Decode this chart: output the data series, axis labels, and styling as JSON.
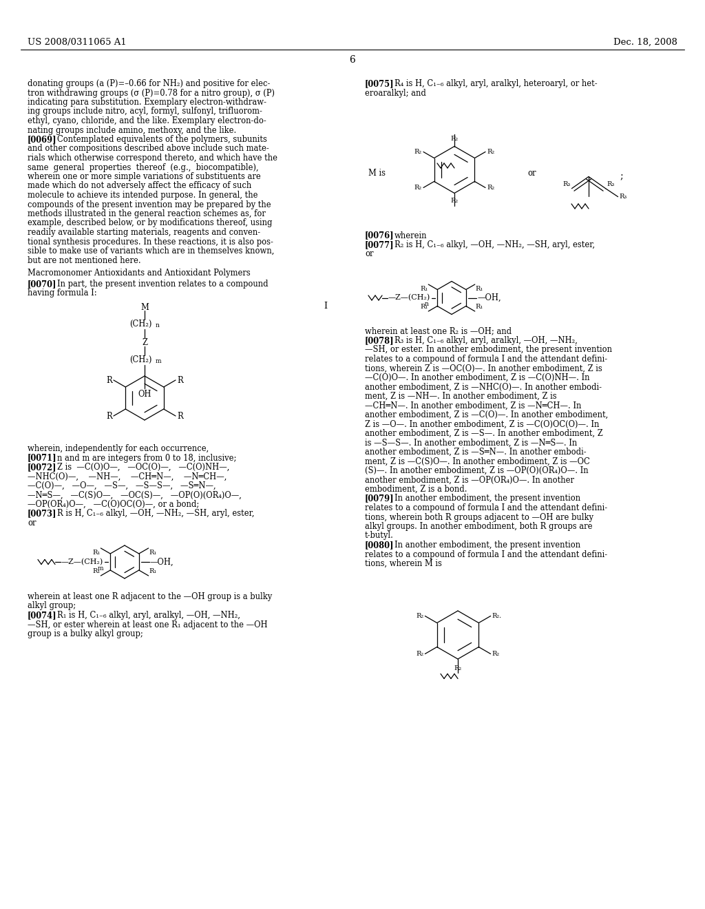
{
  "bg": "#ffffff",
  "text_color": "#000000",
  "header_left": "US 2008/0311065 A1",
  "header_right": "Dec. 18, 2008",
  "page_number": "6"
}
